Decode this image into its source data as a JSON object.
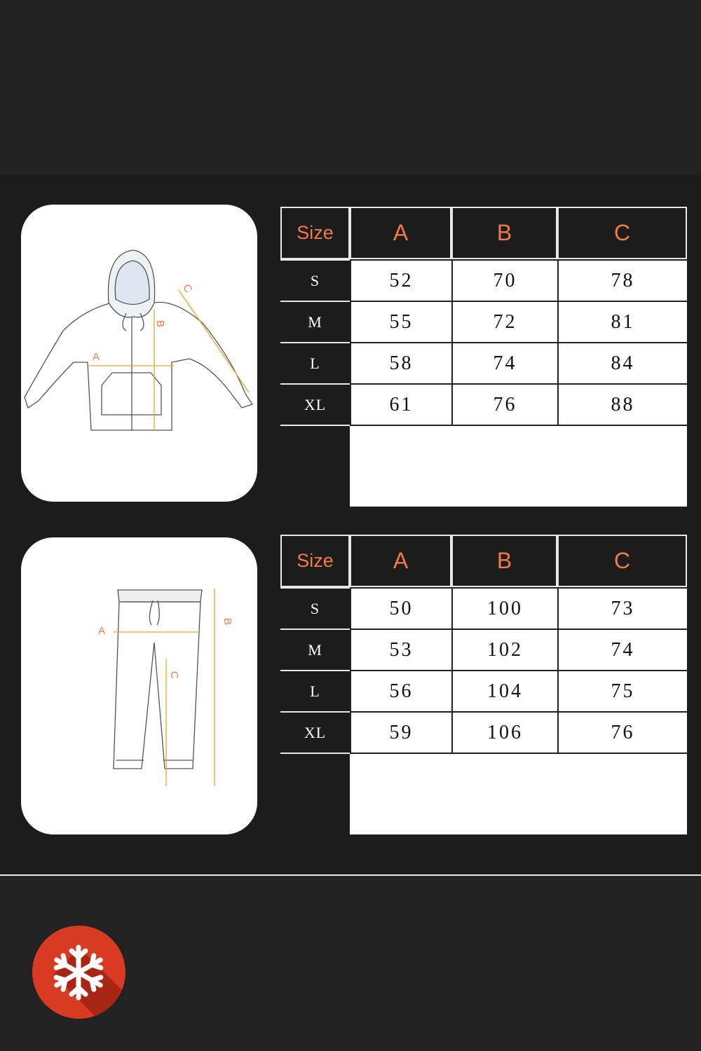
{
  "colors": {
    "accent": "#f07a45",
    "badge": "#d93b22",
    "background": "#1c1c1c"
  },
  "hoodie": {
    "diagram_labels": {
      "a": "A",
      "b": "B",
      "c": "C"
    },
    "headers": [
      "Size",
      "A",
      "B",
      "C"
    ],
    "rows": [
      {
        "size": "S",
        "a": "52",
        "b": "70",
        "c": "78"
      },
      {
        "size": "M",
        "a": "55",
        "b": "72",
        "c": "81"
      },
      {
        "size": "L",
        "a": "58",
        "b": "74",
        "c": "84"
      },
      {
        "size": "XL",
        "a": "61",
        "b": "76",
        "c": "88"
      }
    ]
  },
  "pants": {
    "diagram_labels": {
      "a": "A",
      "b": "B",
      "c": "C"
    },
    "headers": [
      "Size",
      "A",
      "B",
      "C"
    ],
    "rows": [
      {
        "size": "S",
        "a": "50",
        "b": "100",
        "c": "73"
      },
      {
        "size": "M",
        "a": "53",
        "b": "102",
        "c": "74"
      },
      {
        "size": "L",
        "a": "56",
        "b": "104",
        "c": "75"
      },
      {
        "size": "XL",
        "a": "59",
        "b": "106",
        "c": "76"
      }
    ]
  },
  "badge_icon": "snowflake-icon"
}
